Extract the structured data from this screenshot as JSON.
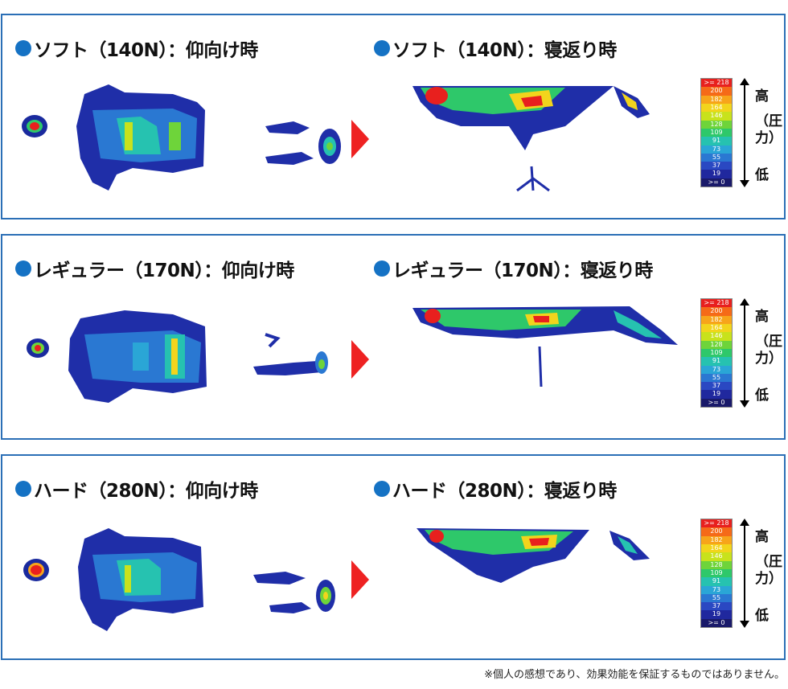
{
  "panels": [
    {
      "left_title": "ソフト（140N）：仰向け時",
      "right_title": "ソフト（140N）：寝返り時"
    },
    {
      "left_title": "レギュラー（170N）：仰向け時",
      "right_title": "レギュラー（170N）：寝返り時"
    },
    {
      "left_title": "ハード（280N）：仰向け時",
      "right_title": "ハード（280N）：寝返り時"
    }
  ],
  "scale": {
    "values": [
      ">= 218",
      "200",
      "182",
      "164",
      "146",
      "128",
      "109",
      "91",
      "73",
      "55",
      "37",
      "19",
      ">= 0"
    ],
    "colors": [
      "#e8201e",
      "#f56a18",
      "#f7a41a",
      "#f2d41c",
      "#c8e21c",
      "#6ed43a",
      "#2ec86a",
      "#26c2b0",
      "#2aa6d6",
      "#2a78d2",
      "#2a48c2",
      "#20289e",
      "#1a1a6a"
    ],
    "high_label": "高",
    "mid_label": "（圧力）",
    "low_label": "低"
  },
  "icons": {
    "bullet": "blue-circle-icon",
    "transition": "red-triangle-right-icon",
    "axis": "double-arrow-vertical-icon"
  },
  "footnote": "※個人の感想であり、効果効能を保証するものではありません。"
}
